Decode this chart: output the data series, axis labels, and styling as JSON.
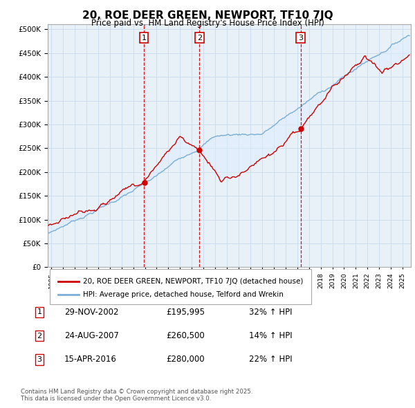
{
  "title": "20, ROE DEER GREEN, NEWPORT, TF10 7JQ",
  "subtitle": "Price paid vs. HM Land Registry's House Price Index (HPI)",
  "ylim": [
    0,
    510000
  ],
  "yticks": [
    0,
    50000,
    100000,
    150000,
    200000,
    250000,
    300000,
    350000,
    400000,
    450000,
    500000
  ],
  "xlim_start": 1994.7,
  "xlim_end": 2025.7,
  "legend_line1": "20, ROE DEER GREEN, NEWPORT, TF10 7JQ (detached house)",
  "legend_line2": "HPI: Average price, detached house, Telford and Wrekin",
  "line_color_red": "#cc0000",
  "line_color_blue": "#7aaed6",
  "fill_color_blue": "#ddeeff",
  "vline_color": "#cc0000",
  "dot_color": "#cc0000",
  "sale_points": [
    {
      "label": "1",
      "date_num": 2002.91,
      "price": 195995,
      "pct": "32%",
      "date_str": "29-NOV-2002",
      "price_str": "£195,995"
    },
    {
      "label": "2",
      "date_num": 2007.65,
      "price": 260500,
      "pct": "14%",
      "date_str": "24-AUG-2007",
      "price_str": "£260,500"
    },
    {
      "label": "3",
      "date_num": 2016.29,
      "price": 280000,
      "pct": "22%",
      "date_str": "15-APR-2016",
      "price_str": "£280,000"
    }
  ],
  "footer": "Contains HM Land Registry data © Crown copyright and database right 2025.\nThis data is licensed under the Open Government Licence v3.0.",
  "background_color": "#ffffff",
  "grid_color": "#ccddee",
  "chart_bg_color": "#e8f0f8"
}
